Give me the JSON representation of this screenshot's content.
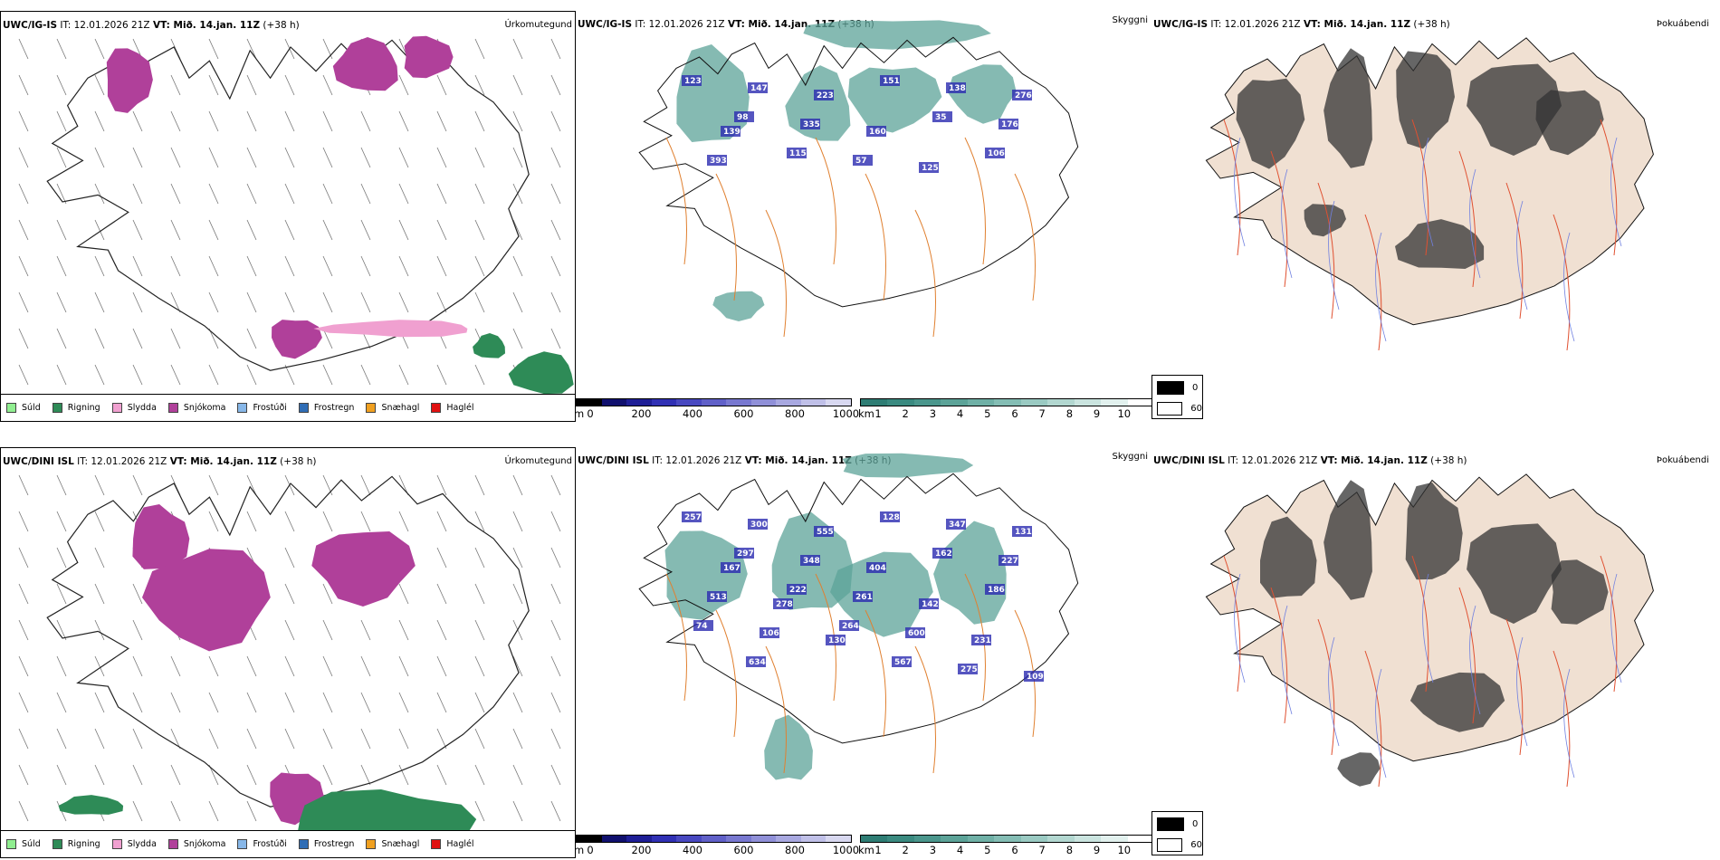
{
  "rows": [
    {
      "model": "UWC/IG-IS",
      "run_label": "IT: 12.01.2026 21Z",
      "valid_label": "VT: Mið. 14.jan. 11Z",
      "lead": "(+38 h)",
      "precip_title": "Úrkomutegund",
      "vis_title": "Skyggni",
      "fog_title": "Þokuábendi",
      "ceiling_numbers": [
        "123",
        "147",
        "223",
        "151",
        "138",
        "276",
        "98",
        "335",
        "160",
        "35",
        "176",
        "139",
        "115",
        "57",
        "125",
        "106",
        "393"
      ]
    },
    {
      "model": "UWC/DINI ISL",
      "run_label": "IT: 12.01.2026 21Z",
      "valid_label": "VT: Mið. 14.jan. 11Z",
      "lead": "(+38 h)",
      "precip_title": "Úrkomutegund",
      "vis_title": "Skyggni",
      "fog_title": "Þokuábendi",
      "ceiling_numbers": [
        "257",
        "300",
        "555",
        "128",
        "347",
        "131",
        "297",
        "348",
        "404",
        "162",
        "227",
        "167",
        "222",
        "261",
        "142",
        "186",
        "513",
        "278",
        "264",
        "600",
        "231",
        "74",
        "106",
        "130",
        "567",
        "275",
        "109",
        "634"
      ]
    }
  ],
  "precip_legend": [
    {
      "label": "Súld",
      "color": "#90ee90"
    },
    {
      "label": "Rigning",
      "color": "#2e8b57"
    },
    {
      "label": "Slydda",
      "color": "#f0a0d0"
    },
    {
      "label": "Snjókoma",
      "color": "#b0409a"
    },
    {
      "label": "Frostúði",
      "color": "#87b7e8"
    },
    {
      "label": "Frostregn",
      "color": "#2f6db5"
    },
    {
      "label": "Snæhagl",
      "color": "#f0a020"
    },
    {
      "label": "Haglél",
      "color": "#e01010"
    }
  ],
  "ceiling_scale": {
    "unit": "m",
    "ticks": [
      "0",
      "200",
      "400",
      "600",
      "800",
      "1000"
    ],
    "colors": [
      "#000000",
      "#10106e",
      "#1e1e96",
      "#3030b4",
      "#4848c0",
      "#6060c8",
      "#7878d0",
      "#9090d8",
      "#a8a8e0",
      "#c0c0e8",
      "#d8d8f0"
    ]
  },
  "visibility_scale": {
    "unit": "km",
    "ticks": [
      "1",
      "2",
      "3",
      "4",
      "5",
      "6",
      "7",
      "8",
      "9",
      "10"
    ],
    "colors": [
      "#2e7d74",
      "#3a8a80",
      "#4a968c",
      "#5ca398",
      "#6fb0a6",
      "#84bdb4",
      "#9acac2",
      "#b2d7d0",
      "#cae4df",
      "#e2f1ee",
      "#ffffff"
    ]
  },
  "fog_scale": {
    "values": [
      "0",
      "60"
    ],
    "colors": [
      "#000000",
      "#ffffff"
    ]
  }
}
